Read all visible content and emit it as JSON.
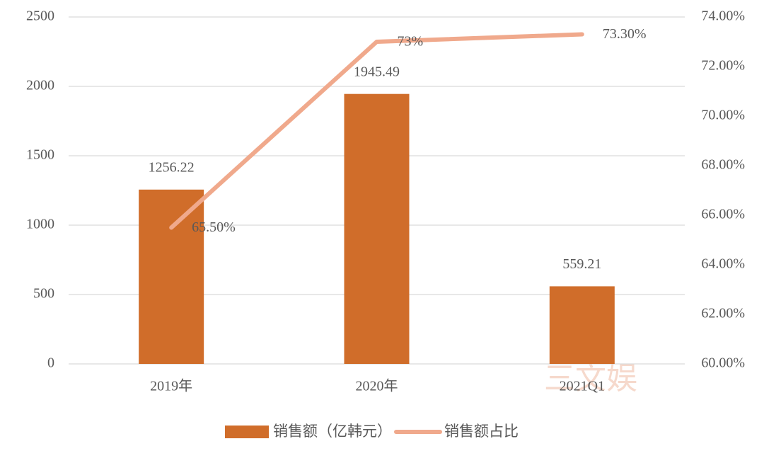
{
  "chart_data": {
    "type": "bar",
    "categories": [
      "2019年",
      "2020年",
      "2021Q1"
    ],
    "series": [
      {
        "name": "销售额（亿韩元）",
        "type": "bar",
        "color": "#d06d2a",
        "values": [
          1256.22,
          1945.49,
          559.21
        ]
      },
      {
        "name": "销售额占比",
        "type": "line",
        "axis": "y2",
        "color": "#f0a98c",
        "values": [
          65.5,
          73,
          73.3
        ],
        "value_labels": [
          "65.50%",
          "73%",
          "73.30%"
        ]
      }
    ],
    "ylim": [
      0,
      2500
    ],
    "yticks": [
      0,
      500,
      1000,
      1500,
      2000,
      2500
    ],
    "y2lim": [
      60,
      74
    ],
    "y2ticks": [
      {
        "value": 60,
        "label": "60.00%"
      },
      {
        "value": 62,
        "label": "62.00%"
      },
      {
        "value": 64,
        "label": "64.00%"
      },
      {
        "value": 66,
        "label": "66.00%"
      },
      {
        "value": 68,
        "label": "68.00%"
      },
      {
        "value": 70,
        "label": "70.00%"
      },
      {
        "value": 72,
        "label": "72.00%"
      },
      {
        "value": 74,
        "label": "74.00%"
      }
    ],
    "grid": true,
    "legend": "bottom",
    "watermark": "三文娱"
  }
}
